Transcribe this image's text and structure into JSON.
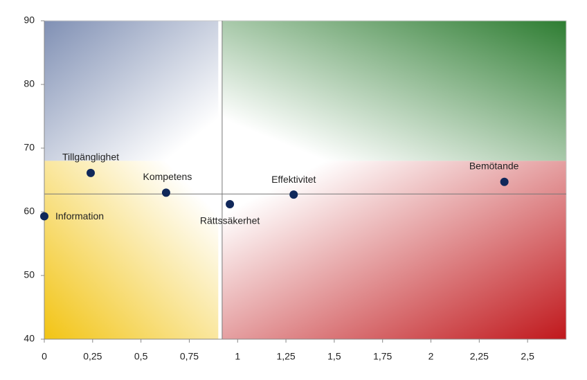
{
  "chart_data": {
    "type": "scatter",
    "points": [
      {
        "name": "Information",
        "x": 0,
        "y": 59.3
      },
      {
        "name": "Tillgänglighet",
        "x": 0.24,
        "y": 66.1
      },
      {
        "name": "Kompetens",
        "x": 0.63,
        "y": 63.0
      },
      {
        "name": "Rättssäkerhet",
        "x": 0.96,
        "y": 61.2
      },
      {
        "name": "Effektivitet",
        "x": 1.29,
        "y": 62.7
      },
      {
        "name": "Bemötande",
        "x": 2.38,
        "y": 64.7
      }
    ],
    "color": "#10285a",
    "xlim": [
      0,
      2.7
    ],
    "ylim": [
      40,
      90
    ],
    "xticks": [
      0,
      {
        "value": 0.25,
        "label": "0,25"
      },
      {
        "value": 0.5,
        "label": "0,5"
      },
      {
        "value": 0.75,
        "label": "0,75"
      },
      1,
      {
        "value": 1.25,
        "label": "1,25"
      },
      {
        "value": 1.5,
        "label": "1,5"
      },
      {
        "value": 1.75,
        "label": "1,75"
      },
      2,
      {
        "value": 2.25,
        "label": "2,25"
      },
      {
        "value": 2.5,
        "label": "2,5"
      }
    ],
    "yticks": [
      40,
      50,
      60,
      70,
      80,
      90
    ],
    "reference_lines": {
      "x": 0.92,
      "y": 62.8
    },
    "zones": [
      {
        "x": [
          0,
          0.9
        ],
        "y": [
          68,
          90
        ],
        "color": "#8090b4"
      },
      {
        "x": [
          0.92,
          2.7
        ],
        "y": [
          68,
          90
        ],
        "color": "#2e7d32"
      },
      {
        "x": [
          0,
          0.9
        ],
        "y": [
          40,
          68
        ],
        "color": "#f2c414"
      },
      {
        "x": [
          0.92,
          2.7
        ],
        "y": [
          40,
          68
        ],
        "color": "#c0181c"
      }
    ]
  }
}
